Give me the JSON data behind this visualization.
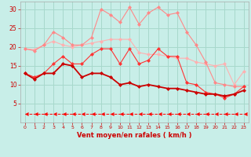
{
  "x": [
    0,
    1,
    2,
    3,
    4,
    5,
    6,
    7,
    8,
    9,
    10,
    11,
    12,
    13,
    14,
    15,
    16,
    17,
    18,
    19,
    20,
    21,
    22,
    23
  ],
  "series": [
    {
      "color": "#FFB0B0",
      "linewidth": 0.8,
      "marker": "D",
      "markersize": 2.0,
      "linestyle": "-",
      "values": [
        19.5,
        19.3,
        20.5,
        21.5,
        20.5,
        20.0,
        20.5,
        21.0,
        21.5,
        22.0,
        22.0,
        22.0,
        18.5,
        18.0,
        18.0,
        17.5,
        17.0,
        17.0,
        16.0,
        15.5,
        15.0,
        15.5,
        10.0,
        13.5
      ]
    },
    {
      "color": "#FF8888",
      "linewidth": 0.8,
      "marker": "D",
      "markersize": 2.0,
      "linestyle": "-",
      "values": [
        19.5,
        19.0,
        20.5,
        24.0,
        22.5,
        20.5,
        20.5,
        22.5,
        30.0,
        28.5,
        26.5,
        30.5,
        26.0,
        29.0,
        30.5,
        28.5,
        29.0,
        24.0,
        20.5,
        16.0,
        10.5,
        10.0,
        9.5,
        9.5
      ]
    },
    {
      "color": "#FF3333",
      "linewidth": 0.8,
      "marker": "D",
      "markersize": 2.0,
      "linestyle": "-",
      "values": [
        13.0,
        12.0,
        13.0,
        15.5,
        17.5,
        15.5,
        15.5,
        18.0,
        19.5,
        19.5,
        15.5,
        19.5,
        15.5,
        16.5,
        19.5,
        17.5,
        17.5,
        10.5,
        10.0,
        8.0,
        7.5,
        6.5,
        7.5,
        9.5
      ]
    },
    {
      "color": "#CC0000",
      "linewidth": 1.3,
      "marker": "D",
      "markersize": 2.0,
      "linestyle": "-",
      "values": [
        13.0,
        11.5,
        13.0,
        13.0,
        15.5,
        15.0,
        12.0,
        13.0,
        13.0,
        12.0,
        10.0,
        10.5,
        9.5,
        10.0,
        9.5,
        9.0,
        9.0,
        8.5,
        8.0,
        7.5,
        7.5,
        7.0,
        7.5,
        8.5
      ]
    },
    {
      "color": "#FF0000",
      "linewidth": 0.7,
      "marker": 4,
      "markersize": 3.5,
      "linestyle": "--",
      "values": [
        2.2,
        2.2,
        2.2,
        2.2,
        2.2,
        2.2,
        2.2,
        2.2,
        2.2,
        2.2,
        2.2,
        2.2,
        2.2,
        2.2,
        2.2,
        2.2,
        2.2,
        2.2,
        2.2,
        2.2,
        2.2,
        2.2,
        2.2,
        2.2
      ]
    }
  ],
  "xlabel": "Vent moyen/en rafales ( km/h )",
  "ylim": [
    0,
    32
  ],
  "yticks": [
    5,
    10,
    15,
    20,
    25,
    30
  ],
  "xlim": [
    -0.5,
    23.5
  ],
  "xticks": [
    0,
    1,
    2,
    3,
    4,
    5,
    6,
    7,
    8,
    9,
    10,
    11,
    12,
    13,
    14,
    15,
    16,
    17,
    18,
    19,
    20,
    21,
    22,
    23
  ],
  "bg_color": "#C8EEE8",
  "grid_color": "#A8D8CC",
  "xlabel_color": "#CC0000",
  "tick_color": "#CC0000"
}
